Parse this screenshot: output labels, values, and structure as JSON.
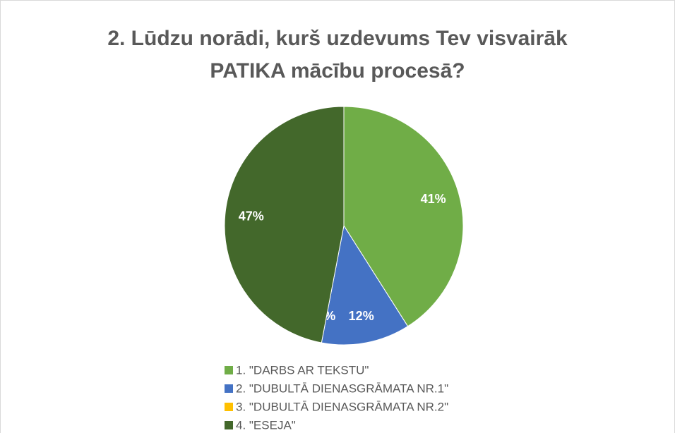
{
  "chart_data": {
    "type": "pie",
    "title": "2. Lūdzu norādi, kurš uzdevums Tev visvairāk PATIKA mācību procesā?",
    "categories": [
      "1. \"DARBS AR TEKSTU\"",
      "2. \"DUBULTĀ DIENASGRĀMATA NR.1\"",
      "3. \"DUBULTĀ DIENASGRĀMATA NR.2\"",
      "4. \"ESEJA\""
    ],
    "values": [
      41,
      12,
      0,
      47
    ],
    "value_labels": [
      "41%",
      "12%",
      "0%",
      "47%"
    ],
    "colors": [
      "#70ad47",
      "#4472c4",
      "#ffc000",
      "#43682b"
    ],
    "legend": "bottom"
  }
}
